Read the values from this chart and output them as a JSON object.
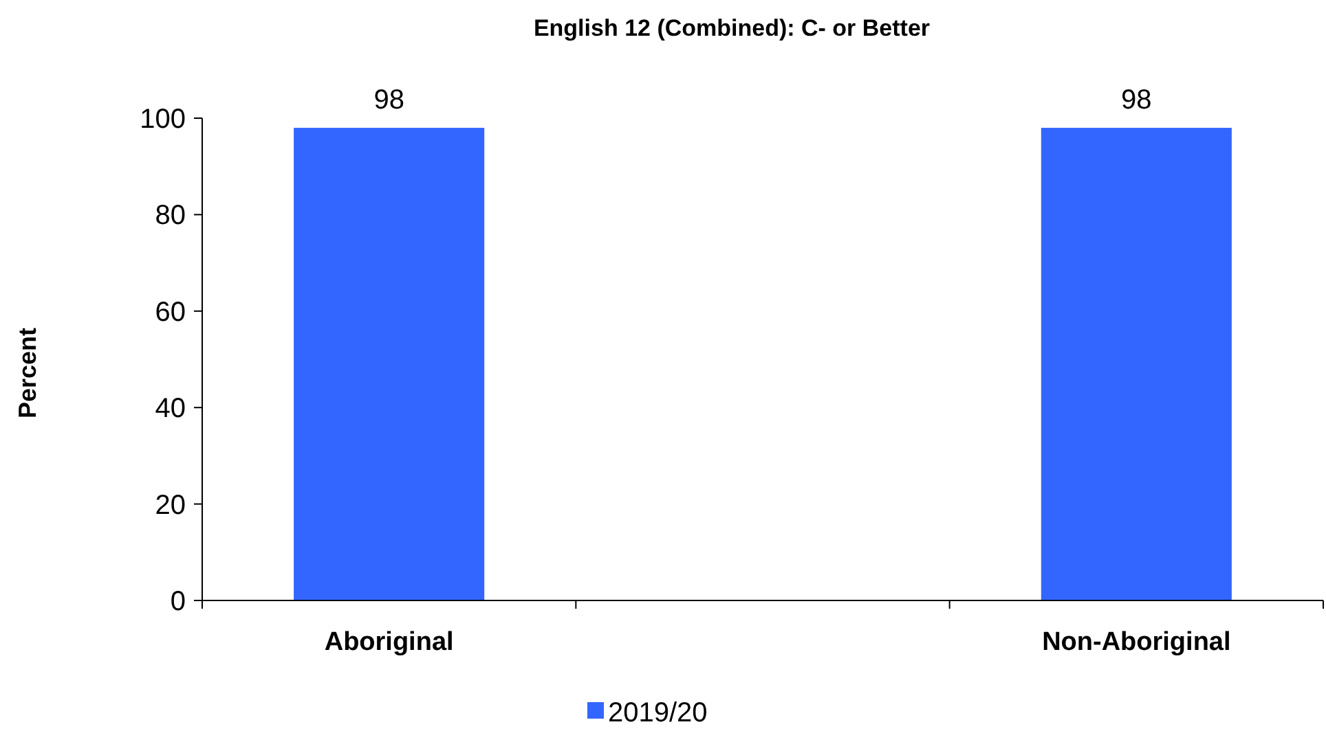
{
  "chart_data": {
    "type": "bar",
    "title": "English 12 (Combined): C- or Better",
    "ylabel": "Percent",
    "categories": [
      "Aboriginal",
      null,
      "Non-Aboriginal"
    ],
    "series": [
      {
        "name": "2019/20",
        "color": "#3366ff",
        "values": [
          98,
          null,
          98
        ]
      }
    ],
    "ylim": [
      0,
      100
    ],
    "yticks": [
      0,
      20,
      40,
      60,
      80,
      100
    ],
    "grid": false,
    "legend": "bottom",
    "data_labels": true
  }
}
